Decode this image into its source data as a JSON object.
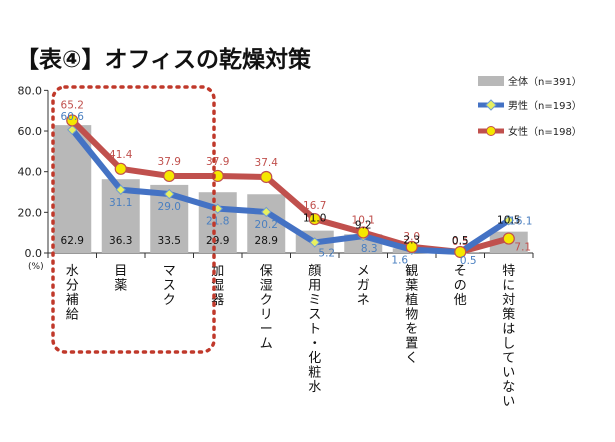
{
  "title": "【表④】オフィスの乾燥対策",
  "chart_data": {
    "type": "bar+line",
    "unit_label": "(%)",
    "categories": [
      "水分補給",
      "目薬",
      "マスク",
      "加湿器",
      "保湿クリーム",
      "顔用ミスト・化粧水",
      "メガネ",
      "観葉植物を置く",
      "その他",
      "特に対策はしていない"
    ],
    "y_ticks": [
      "0.0",
      "20.0",
      "40.0",
      "60.0",
      "80.0"
    ],
    "ylim": [
      0,
      80
    ],
    "series": [
      {
        "name": "全体（n=391）",
        "kind": "bar",
        "color": "#b8b8b8",
        "label_color": "#111111",
        "values": [
          62.9,
          36.3,
          33.5,
          29.9,
          28.9,
          11.0,
          9.2,
          2.3,
          0.5,
          10.5
        ],
        "labels": [
          "62.9",
          "36.3",
          "33.5",
          "29.9",
          "28.9",
          "11.0",
          "9.2",
          "2.3",
          "0.5",
          "10.5"
        ]
      },
      {
        "name": "男性（n=193）",
        "kind": "line",
        "color": "#4472c4",
        "marker_color": "#e8f060",
        "label_color": "#4a7fc0",
        "values": [
          60.6,
          31.1,
          29.0,
          21.8,
          20.2,
          5.2,
          8.3,
          1.6,
          0.5,
          16.1
        ],
        "labels": [
          "60.6",
          "31.1",
          "29.0",
          "21.8",
          "20.2",
          "5.2",
          "8.3",
          "1.6",
          "0.5",
          "16.1"
        ]
      },
      {
        "name": "女性（n=198）",
        "kind": "line",
        "color": "#c0504d",
        "marker_color": "#f5e800",
        "label_color": "#c0504d",
        "values": [
          65.2,
          41.4,
          37.9,
          37.9,
          37.4,
          16.7,
          10.1,
          3.0,
          0.5,
          7.1
        ],
        "labels": [
          "65.2",
          "41.4",
          "37.9",
          "37.9",
          "37.4",
          "16.7",
          "10.1",
          "3.0",
          "0.5",
          "7.1"
        ]
      }
    ],
    "highlight_color": "#c0392b",
    "legend_position": "top-right",
    "grid": false
  }
}
